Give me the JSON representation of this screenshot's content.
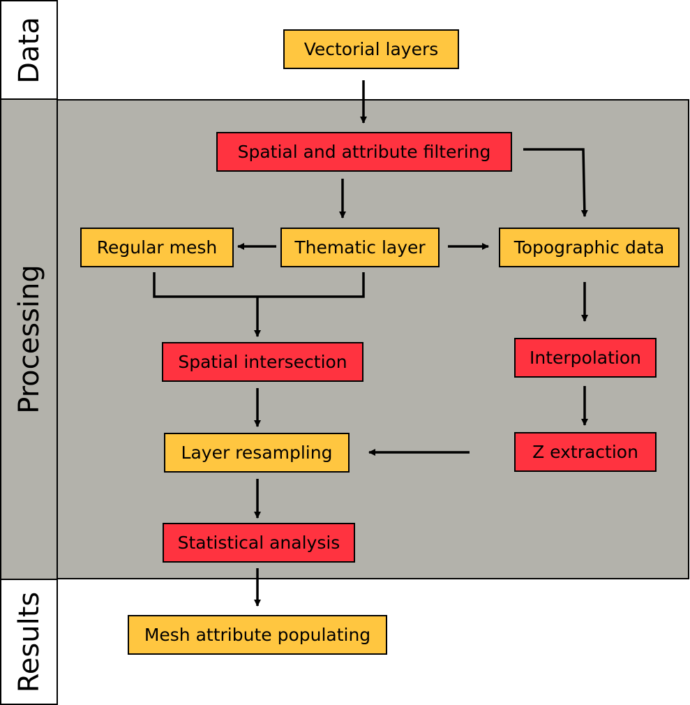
{
  "lanes": {
    "data": "Data",
    "processing": "Processing",
    "results": "Results"
  },
  "nodes": {
    "vectorial_layers": "Vectorial layers",
    "spatial_attribute_filtering": "Spatial and attribute filtering",
    "regular_mesh": "Regular mesh",
    "thematic_layer": "Thematic layer",
    "topographic_data": "Topographic data",
    "spatial_intersection": "Spatial intersection",
    "interpolation": "Interpolation",
    "layer_resampling": "Layer resampling",
    "z_extraction": "Z extraction",
    "statistical_analysis": "Statistical analysis",
    "mesh_attribute_populating": "Mesh attribute populating"
  },
  "colors": {
    "data_node": "#ffc640",
    "process_node": "#ff3340",
    "processing_band": "#b3b2ab"
  }
}
